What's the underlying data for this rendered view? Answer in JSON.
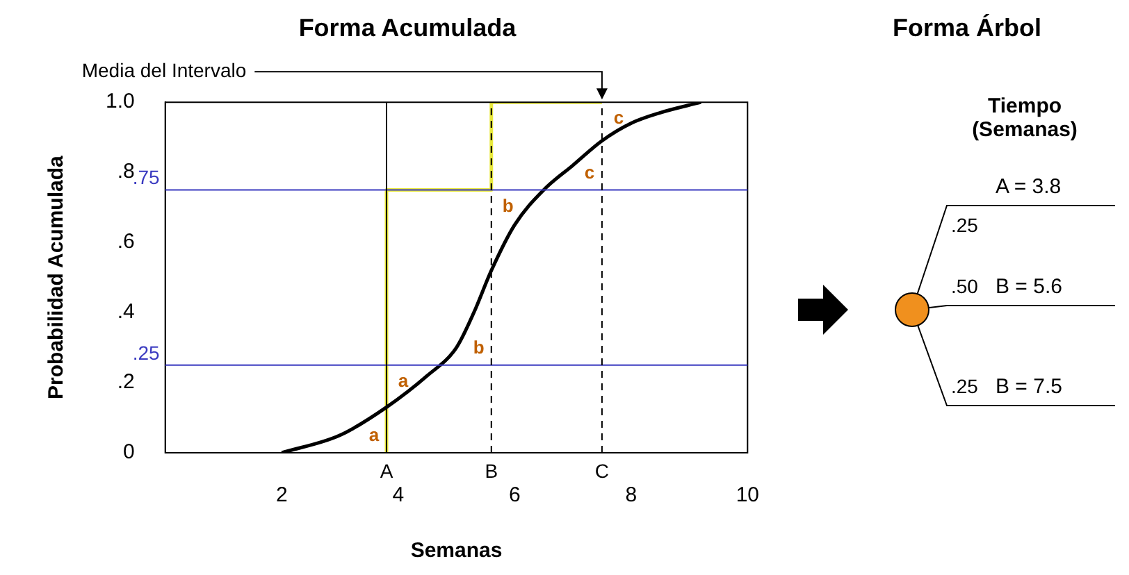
{
  "chart_data": [
    {
      "type": "line",
      "title": "Forma Acumulada",
      "xlabel": "Semanas",
      "ylabel": "Probabilidad Acumulada",
      "series": [
        {
          "x": [
            2,
            3,
            3.8,
            4.5,
            5,
            5.3,
            5.6,
            6,
            6.5,
            7,
            7.5,
            8,
            8.5,
            9.2
          ],
          "values": [
            0,
            0.05,
            0.13,
            0.22,
            0.3,
            0.4,
            0.52,
            0.65,
            0.75,
            0.82,
            0.89,
            0.94,
            0.97,
            1.0
          ],
          "color": "#000000"
        },
        {
          "type": "step",
          "x": [
            3.8,
            3.8,
            5.6,
            7.5
          ],
          "values": [
            0,
            0.25,
            0.75,
            1.0
          ],
          "color": "#e8e83c"
        }
      ],
      "xlim": [
        0,
        10
      ],
      "xticks": [
        2,
        4,
        6,
        8,
        10
      ],
      "ylim": [
        0,
        1
      ],
      "yticks": [
        0,
        {
          "value": 0.2,
          "label": ".2"
        },
        {
          "value": 0.4,
          "label": ".4"
        },
        {
          "value": 0.6,
          "label": ".6"
        },
        {
          "value": 0.8,
          "label": ".8"
        },
        {
          "value": 1,
          "label": "1.0"
        }
      ],
      "grid": false,
      "legend": false,
      "marker": "none",
      "ref_lines": [
        {
          "axis": "y",
          "value": 0.25,
          "label": ".25",
          "color": "#3a3ac0"
        },
        {
          "axis": "y",
          "value": 0.75,
          "label": ".75",
          "color": "#3a3ac0"
        },
        {
          "axis": "x",
          "value": 3.8,
          "label": "A",
          "line_style": "solid"
        },
        {
          "axis": "x",
          "value": 5.6,
          "label": "B",
          "line_style": "dashed"
        },
        {
          "axis": "x",
          "value": 7.5,
          "label": "C",
          "line_style": "dashed"
        }
      ],
      "annotations": [
        {
          "text": "Media del Intervalo",
          "x": 7.5,
          "y": 1.0
        },
        "a",
        "a",
        "b",
        "b",
        "c",
        "c"
      ]
    },
    {
      "type": "other",
      "title": "Forma Árbol",
      "annotations": [
        "Tiempo (Semanas)",
        ".25",
        "A = 3.8",
        ".50",
        "B = 5.6",
        ".25",
        "B = 7.5"
      ]
    }
  ]
}
